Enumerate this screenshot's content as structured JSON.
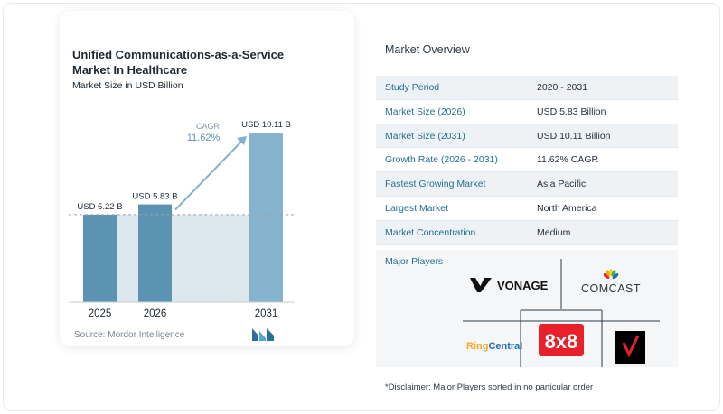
{
  "chart_data": {
    "type": "bar",
    "title": "Unified Communications-as-a-Service Market In Healthcare",
    "subtitle": "Market Size in USD Billion",
    "categories": [
      "2025",
      "2026",
      "2031"
    ],
    "values": [
      5.22,
      5.83,
      10.11
    ],
    "data_labels": [
      "USD 5.22 B",
      "USD 5.83 B",
      "USD 10.11 B"
    ],
    "annotation": {
      "label": "CAGR",
      "value": "11.62%"
    },
    "colors": {
      "bar": "#5b93b3",
      "bar_light": "#86b4cf",
      "baseline_band": "#dde7ee",
      "arrow": "#7fb0cc",
      "dashed": "#9aa3ad"
    }
  },
  "source": "Source: Mordor Intelligence",
  "overview": {
    "title": "Market Overview",
    "rows": [
      {
        "key": "Study Period",
        "value": "2020 - 2031"
      },
      {
        "key": "Market Size (2026)",
        "value": "USD 5.83 Billion"
      },
      {
        "key": "Market Size (2031)",
        "value": "USD 10.11 Billion"
      },
      {
        "key": "Growth Rate (2026 - 2031)",
        "value": "11.62% CAGR"
      },
      {
        "key": "Fastest Growing Market",
        "value": "Asia Pacific"
      },
      {
        "key": "Largest Market",
        "value": "North America"
      },
      {
        "key": "Market Concentration",
        "value": "Medium"
      }
    ]
  },
  "players": {
    "label": "Major Players",
    "logos": [
      "VONAGE",
      "COMCAST",
      "RingCentral",
      "8x8",
      "Verizon"
    ],
    "logo_text": {
      "vonage": "VONAGE",
      "comcast": "COMCAST",
      "ringcentral_ring": "Ring",
      "ringcentral_central": "Central",
      "eightbyeight": "8x8"
    },
    "colors": {
      "ring": "#f5a623",
      "central": "#1f6fb5",
      "eightbyeight": "#e8202a",
      "verizon_bg": "#000000",
      "verizon_check": "#e8202a"
    }
  },
  "disclaimer": "*Disclaimer: Major Players sorted in no particular order"
}
